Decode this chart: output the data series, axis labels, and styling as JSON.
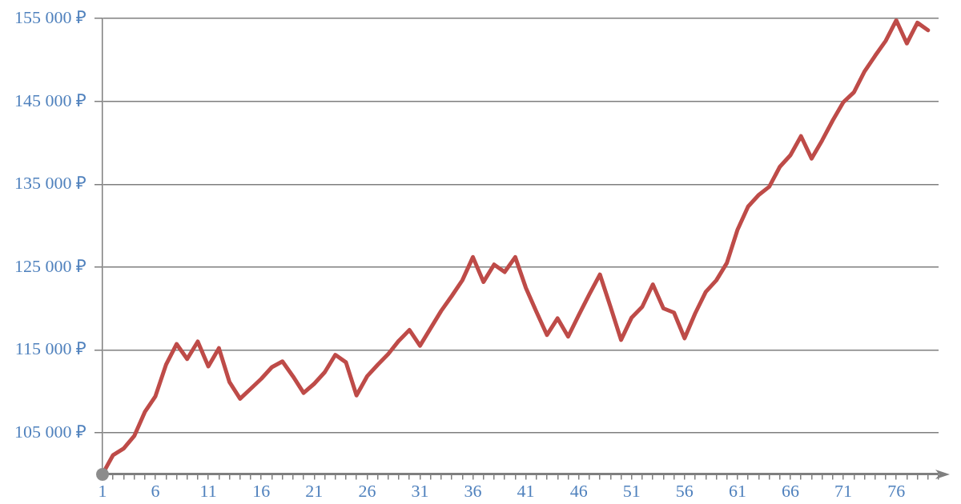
{
  "chart_data": {
    "type": "line",
    "x": [
      1,
      2,
      3,
      4,
      5,
      6,
      7,
      8,
      9,
      10,
      11,
      12,
      13,
      14,
      15,
      16,
      17,
      18,
      19,
      20,
      21,
      22,
      23,
      24,
      25,
      26,
      27,
      28,
      29,
      30,
      31,
      32,
      33,
      34,
      35,
      36,
      37,
      38,
      39,
      40,
      41,
      42,
      43,
      44,
      45,
      46,
      47,
      48,
      49,
      50,
      51,
      52,
      53,
      54,
      55,
      56,
      57,
      58,
      59,
      60,
      61,
      62,
      63,
      64,
      65,
      66,
      67,
      68,
      69,
      70,
      71,
      72,
      73,
      74,
      75,
      76,
      77,
      78,
      79
    ],
    "series": [
      {
        "color": "#be4b48",
        "values": [
          100000,
          102300,
          103100,
          104600,
          107500,
          109400,
          113200,
          115700,
          113900,
          116000,
          113000,
          115200,
          111100,
          109100,
          110300,
          111500,
          112900,
          113600,
          111800,
          109800,
          110900,
          112300,
          114400,
          113500,
          109500,
          111800,
          113200,
          114500,
          116100,
          117400,
          115500,
          117600,
          119700,
          121500,
          123400,
          126200,
          123200,
          125300,
          124400,
          126200,
          122500,
          119600,
          116800,
          118800,
          116600,
          119200,
          121700,
          124100,
          120200,
          116200,
          118900,
          120200,
          122900,
          120000,
          119500,
          116400,
          119400,
          122000,
          123400,
          125500,
          129500,
          132300,
          133700,
          134700,
          137100,
          138500,
          140800,
          138100,
          140300,
          142700,
          144900,
          146100,
          148600,
          150500,
          152300,
          154800,
          152000,
          154500,
          153600
        ]
      }
    ],
    "xlim": [
      1,
      80
    ],
    "xticks": [
      1,
      {
        "value": 2,
        "label": null
      },
      {
        "value": 3,
        "label": null
      },
      {
        "value": 4,
        "label": null
      },
      {
        "value": 5,
        "label": null
      },
      6,
      {
        "value": 7,
        "label": null
      },
      {
        "value": 8,
        "label": null
      },
      {
        "value": 9,
        "label": null
      },
      {
        "value": 10,
        "label": null
      },
      11,
      {
        "value": 12,
        "label": null
      },
      {
        "value": 13,
        "label": null
      },
      {
        "value": 14,
        "label": null
      },
      {
        "value": 15,
        "label": null
      },
      16,
      {
        "value": 17,
        "label": null
      },
      {
        "value": 18,
        "label": null
      },
      {
        "value": 19,
        "label": null
      },
      {
        "value": 20,
        "label": null
      },
      21,
      {
        "value": 22,
        "label": null
      },
      {
        "value": 23,
        "label": null
      },
      {
        "value": 24,
        "label": null
      },
      {
        "value": 25,
        "label": null
      },
      26,
      {
        "value": 27,
        "label": null
      },
      {
        "value": 28,
        "label": null
      },
      {
        "value": 29,
        "label": null
      },
      {
        "value": 30,
        "label": null
      },
      31,
      {
        "value": 32,
        "label": null
      },
      {
        "value": 33,
        "label": null
      },
      {
        "value": 34,
        "label": null
      },
      {
        "value": 35,
        "label": null
      },
      36,
      {
        "value": 37,
        "label": null
      },
      {
        "value": 38,
        "label": null
      },
      {
        "value": 39,
        "label": null
      },
      {
        "value": 40,
        "label": null
      },
      41,
      {
        "value": 42,
        "label": null
      },
      {
        "value": 43,
        "label": null
      },
      {
        "value": 44,
        "label": null
      },
      {
        "value": 45,
        "label": null
      },
      46,
      {
        "value": 47,
        "label": null
      },
      {
        "value": 48,
        "label": null
      },
      {
        "value": 49,
        "label": null
      },
      {
        "value": 50,
        "label": null
      },
      51,
      {
        "value": 52,
        "label": null
      },
      {
        "value": 53,
        "label": null
      },
      {
        "value": 54,
        "label": null
      },
      {
        "value": 55,
        "label": null
      },
      56,
      {
        "value": 57,
        "label": null
      },
      {
        "value": 58,
        "label": null
      },
      {
        "value": 59,
        "label": null
      },
      {
        "value": 60,
        "label": null
      },
      61,
      {
        "value": 62,
        "label": null
      },
      {
        "value": 63,
        "label": null
      },
      {
        "value": 64,
        "label": null
      },
      {
        "value": 65,
        "label": null
      },
      66,
      {
        "value": 67,
        "label": null
      },
      {
        "value": 68,
        "label": null
      },
      {
        "value": 69,
        "label": null
      },
      {
        "value": 70,
        "label": null
      },
      71,
      {
        "value": 72,
        "label": null
      },
      {
        "value": 73,
        "label": null
      },
      {
        "value": 74,
        "label": null
      },
      {
        "value": 75,
        "label": null
      },
      76,
      {
        "value": 77,
        "label": null
      },
      {
        "value": 78,
        "label": null
      },
      {
        "value": 79,
        "label": null
      },
      {
        "value": 80,
        "label": null
      }
    ],
    "ylim": [
      100000,
      155000
    ],
    "yticks": [
      {
        "value": 105000,
        "label": "105 000 ₽"
      },
      {
        "value": 115000,
        "label": "115 000 ₽"
      },
      {
        "value": 125000,
        "label": "125 000 ₽"
      },
      {
        "value": 135000,
        "label": "135 000 ₽"
      },
      {
        "value": 145000,
        "label": "145 000 ₽"
      },
      {
        "value": 155000,
        "label": "155 000 ₽"
      }
    ],
    "grid": "y",
    "legend": false,
    "marker": "none",
    "line_style": "solid"
  }
}
